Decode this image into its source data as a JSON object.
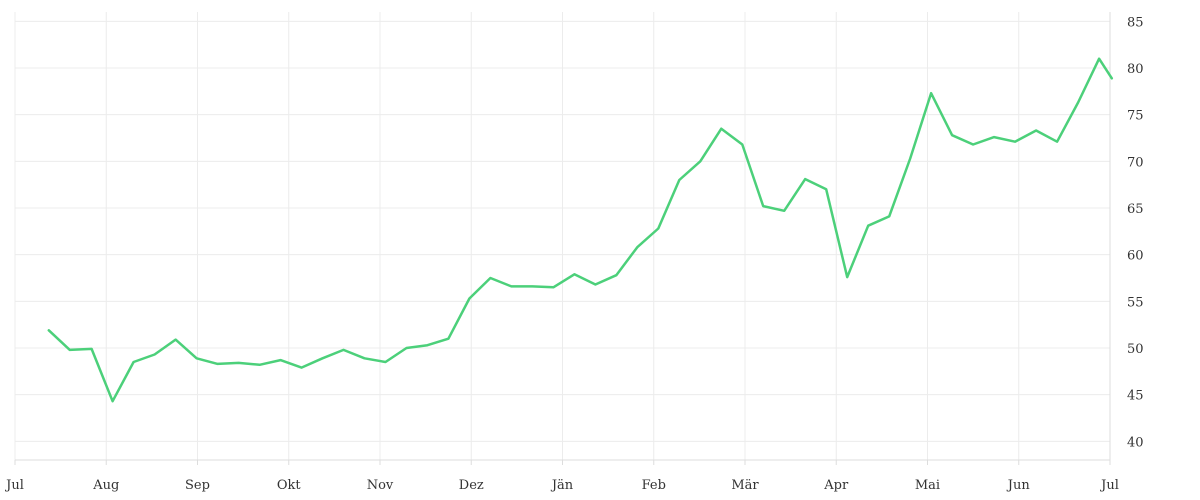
{
  "colors": {
    "series": "#4cd07a",
    "grid": "#ececec",
    "text": "#333333"
  },
  "chart_data": {
    "type": "line",
    "title": "",
    "xlabel": "",
    "ylabel": "",
    "grid": true,
    "legend": "none",
    "y_axis_side": "right",
    "ylim": [
      38,
      86
    ],
    "yticks": [
      40,
      45,
      50,
      55,
      60,
      65,
      70,
      75,
      80,
      85
    ],
    "xlim": [
      0,
      12
    ],
    "xticks": [
      {
        "label": "Jul",
        "at": 0
      },
      {
        "label": "Aug",
        "at": 1
      },
      {
        "label": "Sep",
        "at": 2
      },
      {
        "label": "Okt",
        "at": 3
      },
      {
        "label": "Nov",
        "at": 4
      },
      {
        "label": "Dez",
        "at": 5
      },
      {
        "label": "Jän",
        "at": 6
      },
      {
        "label": "Feb",
        "at": 7
      },
      {
        "label": "Mär",
        "at": 8
      },
      {
        "label": "Apr",
        "at": 9
      },
      {
        "label": "Mai",
        "at": 10
      },
      {
        "label": "Jun",
        "at": 11
      },
      {
        "label": "Jul",
        "at": 12
      }
    ],
    "series": [
      {
        "x": [
          0.37,
          0.6,
          0.84,
          1.07,
          1.3,
          1.53,
          1.76,
          1.99,
          2.22,
          2.45,
          2.68,
          2.91,
          3.14,
          3.37,
          3.6,
          3.83,
          4.06,
          4.29,
          4.52,
          4.75,
          4.98,
          5.21,
          5.44,
          5.67,
          5.9,
          6.13,
          6.36,
          6.59,
          6.82,
          7.05,
          7.28,
          7.51,
          7.74,
          7.97,
          8.2,
          8.43,
          8.66,
          8.89,
          9.12,
          9.35,
          9.58,
          9.81,
          10.04,
          10.27,
          10.5,
          10.73,
          10.96,
          11.19,
          11.42,
          11.65,
          11.88,
          12.02
        ],
        "values": [
          51.9,
          49.8,
          49.9,
          44.3,
          48.5,
          49.3,
          50.9,
          48.9,
          48.3,
          48.4,
          48.2,
          48.7,
          47.9,
          48.9,
          49.8,
          48.9,
          48.5,
          50.0,
          50.3,
          51.0,
          55.3,
          57.5,
          56.6,
          56.6,
          56.5,
          57.9,
          56.8,
          57.8,
          60.8,
          62.8,
          68.0,
          70.0,
          73.5,
          71.8,
          65.2,
          64.7,
          68.1,
          67.0,
          57.6,
          63.1,
          64.1,
          70.3,
          77.3,
          72.8,
          71.8,
          72.6,
          72.1,
          73.3,
          72.1,
          76.3,
          81.0,
          78.9
        ]
      }
    ]
  }
}
